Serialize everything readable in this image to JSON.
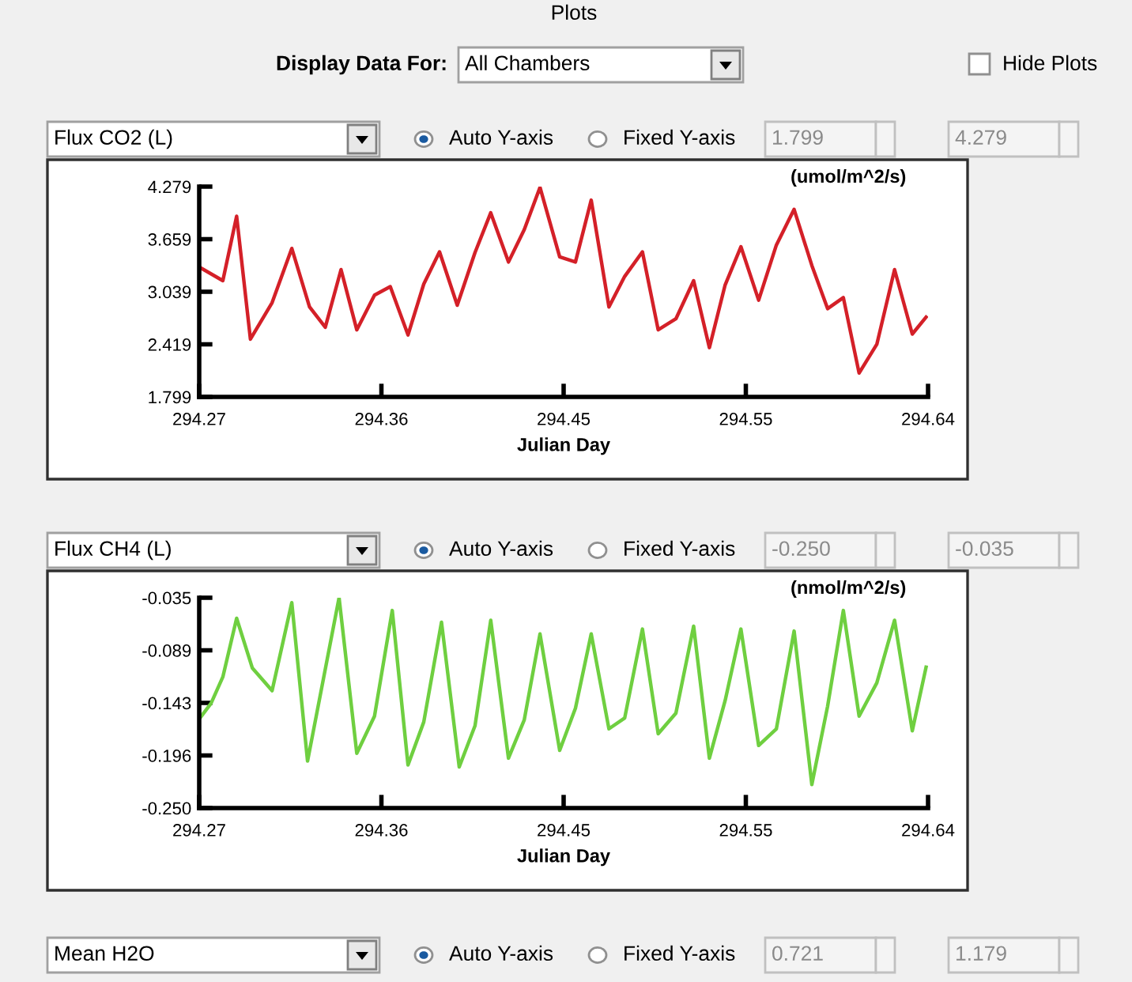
{
  "chart_data": [
    {
      "type": "line",
      "title": "Flux CO2 (L)",
      "xlabel": "Julian Day",
      "ylabel": "(umol/m^2/s)",
      "annotations": [
        "Auto Y-axis",
        "Fixed Y-axis",
        "1.799",
        "4.279"
      ],
      "xlim": [
        294.27,
        294.64
      ],
      "xticks": [
        {
          "value": 294.27,
          "label": "294.27"
        },
        {
          "value": 294.3625,
          "label": "294.36"
        },
        {
          "value": 294.455,
          "label": "294.45"
        },
        {
          "value": 294.5475,
          "label": "294.55"
        },
        {
          "value": 294.64,
          "label": "294.64"
        }
      ],
      "ylim": [
        1.799,
        4.279
      ],
      "yticks": [
        1.799,
        2.419,
        3.039,
        3.659,
        4.279
      ],
      "grid": false,
      "legend": false,
      "series": [
        {
          "color": "#d42028",
          "x": [
            294.27,
            294.282,
            294.289,
            294.296,
            294.307,
            294.317,
            294.326,
            294.334,
            294.342,
            294.35,
            294.359,
            294.367,
            294.376,
            294.384,
            294.392,
            294.401,
            294.41,
            294.418,
            294.427,
            294.435,
            294.443,
            294.453,
            294.461,
            294.469,
            294.478,
            294.486,
            294.495,
            294.503,
            294.512,
            294.521,
            294.529,
            294.537,
            294.545,
            294.554,
            294.563,
            294.572,
            294.581,
            294.589,
            294.597,
            294.605,
            294.614,
            294.623,
            294.632,
            294.639
          ],
          "values": [
            3.33,
            3.17,
            3.93,
            2.48,
            2.91,
            3.55,
            2.86,
            2.62,
            3.3,
            2.59,
            3.0,
            3.1,
            2.53,
            3.13,
            3.51,
            2.88,
            3.5,
            3.97,
            3.39,
            3.77,
            4.27,
            3.45,
            3.39,
            4.12,
            2.86,
            3.22,
            3.51,
            2.59,
            2.72,
            3.17,
            2.38,
            3.12,
            3.57,
            2.94,
            3.59,
            4.01,
            3.35,
            2.84,
            2.97,
            2.08,
            2.42,
            3.3,
            2.54,
            2.74
          ]
        }
      ]
    },
    {
      "type": "line",
      "title": "Flux CH4 (L)",
      "xlabel": "Julian Day",
      "ylabel": "(nmol/m^2/s)",
      "annotations": [
        "Auto Y-axis",
        "Fixed Y-axis",
        "-0.250",
        "-0.035"
      ],
      "xlim": [
        294.27,
        294.64
      ],
      "xticks": [
        {
          "value": 294.27,
          "label": "294.27"
        },
        {
          "value": 294.3625,
          "label": "294.36"
        },
        {
          "value": 294.455,
          "label": "294.45"
        },
        {
          "value": 294.5475,
          "label": "294.55"
        },
        {
          "value": 294.64,
          "label": "294.64"
        }
      ],
      "ylim": [
        -0.25,
        -0.035
      ],
      "yticks": [
        {
          "value": -0.25,
          "label": "-0.250"
        },
        {
          "value": -0.19625,
          "label": "-0.196"
        },
        {
          "value": -0.1425,
          "label": "-0.143"
        },
        {
          "value": -0.08875,
          "label": "-0.089"
        },
        {
          "value": -0.035,
          "label": "-0.035"
        }
      ],
      "grid": false,
      "legend": false,
      "series": [
        {
          "color": "#6fcf40",
          "x": [
            294.27,
            294.276,
            294.282,
            294.289,
            294.297,
            294.307,
            294.317,
            294.325,
            294.341,
            294.35,
            294.359,
            294.368,
            294.376,
            294.384,
            294.393,
            294.402,
            294.41,
            294.418,
            294.427,
            294.435,
            294.443,
            294.453,
            294.461,
            294.469,
            294.478,
            294.486,
            294.495,
            294.503,
            294.512,
            294.521,
            294.529,
            294.537,
            294.545,
            294.554,
            294.563,
            294.572,
            294.581,
            294.589,
            294.597,
            294.605,
            294.614,
            294.623,
            294.632,
            294.639
          ],
          "values": [
            -0.159,
            -0.143,
            -0.116,
            -0.056,
            -0.107,
            -0.13,
            -0.04,
            -0.202,
            -0.035,
            -0.194,
            -0.156,
            -0.048,
            -0.206,
            -0.162,
            -0.06,
            -0.208,
            -0.166,
            -0.058,
            -0.199,
            -0.16,
            -0.072,
            -0.191,
            -0.148,
            -0.072,
            -0.169,
            -0.158,
            -0.067,
            -0.174,
            -0.153,
            -0.064,
            -0.199,
            -0.14,
            -0.067,
            -0.186,
            -0.169,
            -0.069,
            -0.226,
            -0.146,
            -0.048,
            -0.156,
            -0.122,
            -0.058,
            -0.171,
            -0.106
          ]
        }
      ]
    },
    {
      "type": "other",
      "annotations": [
        "Plots",
        "Display Data For:",
        "All Chambers",
        "Hide Plots",
        "Mean H2O",
        "Auto Y-axis",
        "Fixed Y-axis",
        "0.721",
        "1.179"
      ]
    }
  ]
}
